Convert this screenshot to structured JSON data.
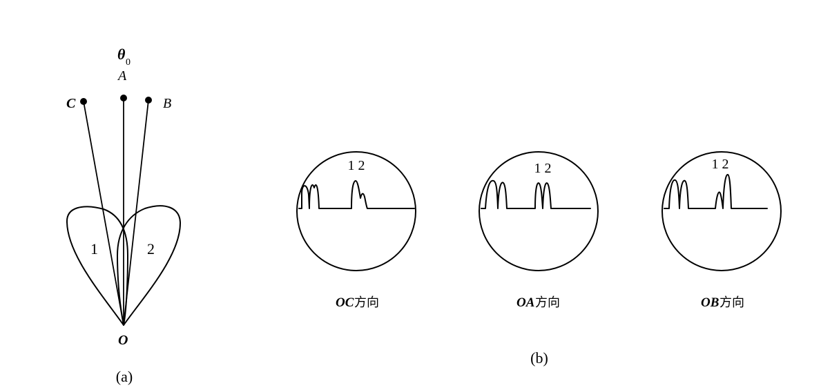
{
  "panel_a": {
    "theta_symbol": "θ",
    "theta_subscript": "0",
    "label_A": "A",
    "label_B": "B",
    "label_C": "C",
    "label_O": "O",
    "lobe_1": "1",
    "lobe_2": "2",
    "caption": "(a)"
  },
  "panel_b": {
    "caption": "(b)",
    "screens": [
      {
        "peaks_label": "1 2",
        "direction_letters": "OC",
        "direction_text": "方向"
      },
      {
        "peaks_label": "1 2",
        "direction_letters": "OA",
        "direction_text": "方向"
      },
      {
        "peaks_label": "1 2",
        "direction_letters": "OB",
        "direction_text": "方向"
      }
    ]
  }
}
